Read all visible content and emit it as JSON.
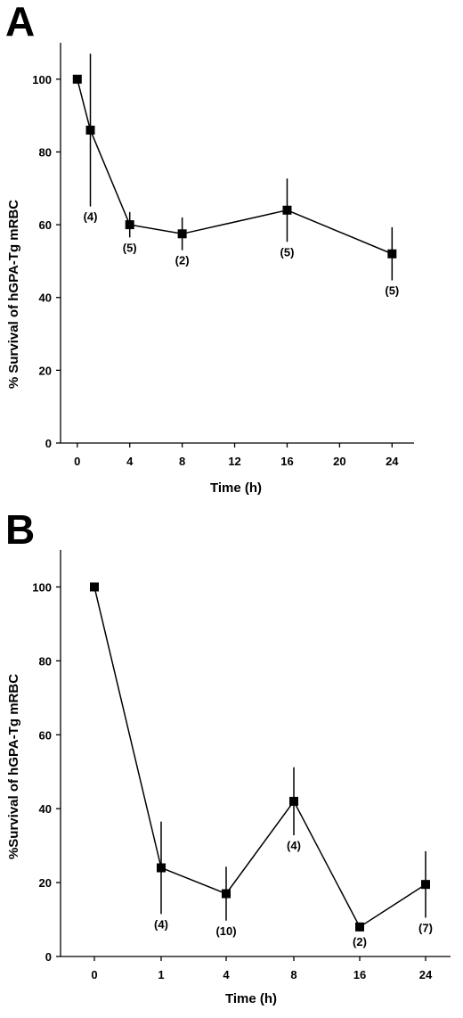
{
  "chart_data": [
    {
      "panel": "A",
      "type": "line",
      "xaxis_scale": "linear",
      "ylabel": "% Survival of hGPA-Tg mRBC",
      "xlabel": "Time (h)",
      "x_ticks": [
        0,
        4,
        8,
        12,
        16,
        20,
        24
      ],
      "x_tick_labels": [
        "0",
        "4",
        "8",
        "12",
        "16",
        "20",
        "24"
      ],
      "y_ticks": [
        0,
        20,
        40,
        60,
        80,
        100
      ],
      "ylim": [
        0,
        110
      ],
      "xlim": [
        -0.8,
        25.2
      ],
      "grid": false,
      "points": [
        {
          "x": 0,
          "y": 100,
          "err": 0,
          "n_label": ""
        },
        {
          "x": 1,
          "y": 86,
          "err": 21,
          "n_label": "(4)"
        },
        {
          "x": 4,
          "y": 60,
          "err": 3.5,
          "n_label": "(5)"
        },
        {
          "x": 8,
          "y": 57.5,
          "err": 4.5,
          "n_label": "(2)"
        },
        {
          "x": 16,
          "y": 64,
          "err": 8.7,
          "n_label": "(5)"
        },
        {
          "x": 24,
          "y": 52,
          "err": 7.3,
          "n_label": "(5)"
        }
      ]
    },
    {
      "panel": "B",
      "type": "line",
      "xaxis_scale": "categorical",
      "ylabel": "%Survival of hGPA-Tg mRBC",
      "xlabel": "Time (h)",
      "x_ticks": [
        0,
        1,
        4,
        8,
        16,
        24
      ],
      "x_tick_labels": [
        "0",
        "1",
        "4",
        "8",
        "16",
        "24"
      ],
      "y_ticks": [
        0,
        20,
        40,
        60,
        80,
        100
      ],
      "ylim": [
        0,
        110
      ],
      "grid": false,
      "points": [
        {
          "x": 0,
          "y": 100,
          "err": 0,
          "n_label": ""
        },
        {
          "x": 1,
          "y": 24,
          "err": 12.5,
          "n_label": "(4)"
        },
        {
          "x": 4,
          "y": 17,
          "err": 7.3,
          "n_label": "(10)"
        },
        {
          "x": 8,
          "y": 42,
          "err": 9.2,
          "n_label": "(4)"
        },
        {
          "x": 16,
          "y": 8,
          "err": 1.2,
          "n_label": "(2)"
        },
        {
          "x": 24,
          "y": 19.5,
          "err": 9,
          "n_label": "(7)"
        }
      ]
    }
  ]
}
